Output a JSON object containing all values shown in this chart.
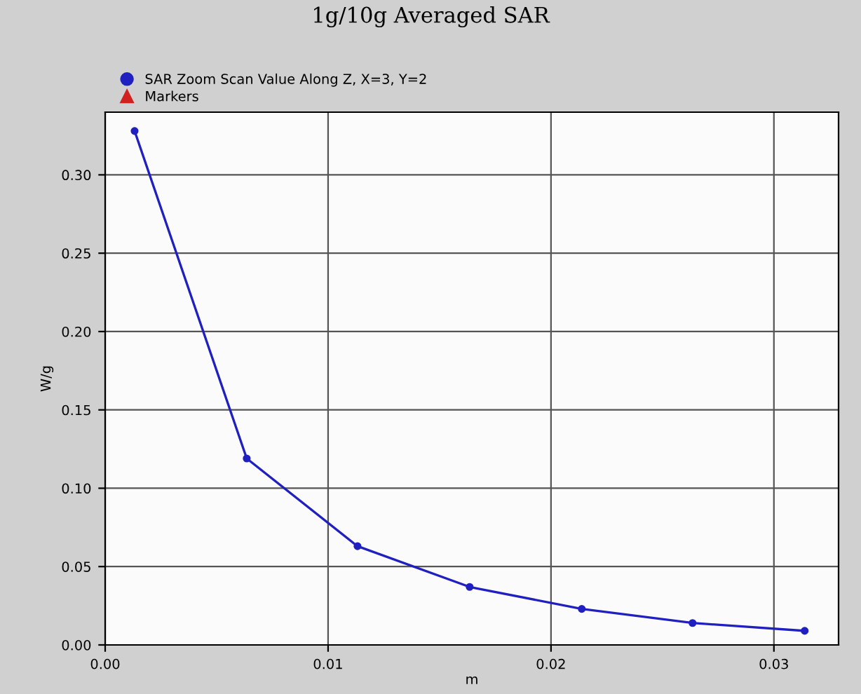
{
  "chart_data": {
    "type": "line",
    "title": "1g/10g Averaged SAR",
    "xlabel": "m",
    "ylabel": "W/g",
    "x": [
      0.00132,
      0.00635,
      0.01132,
      0.01635,
      0.02138,
      0.02635,
      0.03138
    ],
    "series": [
      {
        "name": "SAR Zoom Scan Value Along Z, X=3, Y=2",
        "color": "#2020c0",
        "values": [
          0.328,
          0.119,
          0.063,
          0.037,
          0.023,
          0.014,
          0.009
        ],
        "marker": "circle"
      },
      {
        "name": "Markers",
        "color": "#d02020",
        "values": [
          null,
          null,
          null,
          null,
          null,
          null,
          null
        ],
        "marker": "triangle"
      }
    ],
    "xlim": [
      0,
      0.0329
    ],
    "xticks": [
      {
        "value": 0,
        "label": "0.00"
      },
      {
        "value": 0.01,
        "label": "0.01"
      },
      {
        "value": 0.02,
        "label": "0.02"
      },
      {
        "value": 0.03,
        "label": "0.03"
      }
    ],
    "ylim": [
      0,
      0.34
    ],
    "yticks": [
      {
        "value": 0,
        "label": "0.00"
      },
      {
        "value": 0.05,
        "label": "0.05"
      },
      {
        "value": 0.1,
        "label": "0.10"
      },
      {
        "value": 0.15,
        "label": "0.15"
      },
      {
        "value": 0.2,
        "label": "0.20"
      },
      {
        "value": 0.25,
        "label": "0.25"
      },
      {
        "value": 0.3,
        "label": "0.30"
      }
    ],
    "grid": true,
    "legend": "top left"
  }
}
